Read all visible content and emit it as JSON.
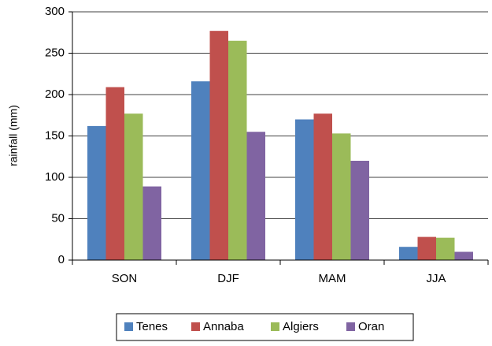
{
  "chart_data": {
    "type": "bar",
    "y_label": "rainfall (mm)",
    "categories": [
      "SON",
      "DJF",
      "MAM",
      "JJA"
    ],
    "series": [
      {
        "name": "Tenes",
        "color": "#4f81bd",
        "values": [
          162,
          216,
          170,
          16
        ]
      },
      {
        "name": "Annaba",
        "color": "#c0504d",
        "values": [
          209,
          277,
          177,
          28
        ]
      },
      {
        "name": "Algiers",
        "color": "#9bbb59",
        "values": [
          177,
          265,
          153,
          27
        ]
      },
      {
        "name": "Oran",
        "color": "#8064a2",
        "values": [
          89,
          155,
          120,
          10
        ]
      }
    ],
    "ylim": [
      0,
      300
    ],
    "yticks": [
      0,
      50,
      100,
      150,
      200,
      250,
      300
    ],
    "grid": true,
    "legend": "bottom"
  }
}
